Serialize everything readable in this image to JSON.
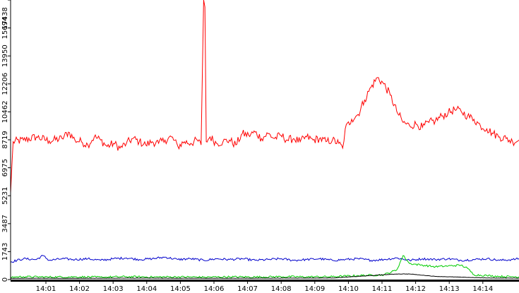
{
  "chart_data": {
    "type": "line",
    "title": "",
    "xlabel": "",
    "ylabel": "",
    "x_tick_labels": [
      "14:01",
      "14:02",
      "14:03",
      "14:04",
      "14:05",
      "14:06",
      "14:07",
      "14:08",
      "14:09",
      "14:10",
      "14:11",
      "14:12",
      "14:13",
      "14:14"
    ],
    "y_tick_labels": [
      "0",
      "1743",
      "3487",
      "5231",
      "6975",
      "8719",
      "10462",
      "12206",
      "13950",
      "15694",
      "17438"
    ],
    "ylim": [
      0,
      17438
    ],
    "xlim_minutes": [
      14.5,
      15.65
    ],
    "grid": false,
    "legend": "none",
    "colors": {
      "red": "#ff0000",
      "blue": "#0000cc",
      "green": "#00cc00",
      "black": "#000000",
      "axis": "#000000"
    },
    "series": [
      {
        "color": "red",
        "points": [
          [
            14.5,
            5400
          ],
          [
            14.52,
            8600
          ],
          [
            14.6,
            8700
          ],
          [
            14.7,
            8900
          ],
          [
            14.8,
            8650
          ],
          [
            14.9,
            8800
          ],
          [
            14.95,
            9200
          ],
          [
            15.0,
            8700
          ],
          [
            15.05,
            8600
          ],
          [
            15.1,
            8400
          ],
          [
            15.15,
            8900
          ],
          [
            15.2,
            8700
          ],
          [
            15.25,
            8300
          ],
          [
            15.3,
            8500
          ],
          [
            15.35,
            8200
          ],
          [
            15.4,
            8500
          ],
          [
            15.45,
            8800
          ],
          [
            15.5,
            8600
          ],
          [
            15.55,
            8400
          ],
          [
            15.6,
            8600
          ],
          [
            15.65,
            8500
          ],
          [
            15.7,
            8700
          ],
          [
            15.75,
            8900
          ],
          [
            15.8,
            8300
          ],
          [
            15.85,
            8600
          ],
          [
            15.9,
            8500
          ],
          [
            15.95,
            8700
          ],
          [
            15.98,
            8400
          ],
          [
            16.0,
            17438
          ],
          [
            16.01,
            17000
          ],
          [
            16.02,
            8600
          ],
          [
            16.05,
            8900
          ],
          [
            16.1,
            8500
          ],
          [
            16.15,
            8600
          ],
          [
            16.2,
            8700
          ],
          [
            16.25,
            8400
          ],
          [
            16.3,
            9100
          ],
          [
            16.35,
            9000
          ],
          [
            16.4,
            9200
          ],
          [
            16.45,
            8800
          ],
          [
            16.5,
            9100
          ],
          [
            16.55,
            8800
          ],
          [
            16.6,
            9000
          ],
          [
            16.65,
            8700
          ],
          [
            16.7,
            8800
          ],
          [
            16.75,
            8600
          ],
          [
            16.8,
            8900
          ],
          [
            16.85,
            8700
          ],
          [
            16.9,
            8800
          ],
          [
            16.95,
            8600
          ],
          [
            17.0,
            8700
          ],
          [
            17.05,
            8500
          ],
          [
            17.08,
            8200
          ],
          [
            17.1,
            9400
          ],
          [
            17.15,
            10000
          ],
          [
            17.2,
            10300
          ],
          [
            17.25,
            11200
          ],
          [
            17.3,
            12000
          ],
          [
            17.35,
            12600
          ],
          [
            17.4,
            12200
          ],
          [
            17.45,
            11500
          ],
          [
            17.5,
            10500
          ],
          [
            17.55,
            9800
          ],
          [
            17.6,
            9600
          ],
          [
            17.65,
            9700
          ],
          [
            17.7,
            9500
          ],
          [
            17.75,
            9800
          ],
          [
            17.8,
            9900
          ],
          [
            17.85,
            10200
          ],
          [
            17.9,
            10400
          ],
          [
            17.95,
            10600
          ],
          [
            18.0,
            10500
          ],
          [
            18.05,
            10200
          ],
          [
            18.1,
            10000
          ],
          [
            18.15,
            9600
          ],
          [
            18.2,
            9400
          ],
          [
            18.25,
            9100
          ],
          [
            18.3,
            8900
          ],
          [
            18.35,
            8800
          ],
          [
            18.4,
            8600
          ],
          [
            18.45,
            8700
          ]
        ]
      },
      {
        "color": "blue",
        "points": [
          [
            14.5,
            1100
          ],
          [
            14.6,
            1300
          ],
          [
            14.7,
            1250
          ],
          [
            14.75,
            1500
          ],
          [
            14.8,
            1200
          ],
          [
            14.9,
            1300
          ],
          [
            15.0,
            1250
          ],
          [
            15.1,
            1300
          ],
          [
            15.2,
            1200
          ],
          [
            15.3,
            1300
          ],
          [
            15.4,
            1350
          ],
          [
            15.5,
            1250
          ],
          [
            15.6,
            1300
          ],
          [
            15.7,
            1400
          ],
          [
            15.8,
            1250
          ],
          [
            15.9,
            1300
          ],
          [
            16.0,
            1200
          ],
          [
            16.1,
            1300
          ],
          [
            16.2,
            1250
          ],
          [
            16.3,
            1300
          ],
          [
            16.4,
            1200
          ],
          [
            16.5,
            1250
          ],
          [
            16.6,
            1300
          ],
          [
            16.7,
            1200
          ],
          [
            16.8,
            1250
          ],
          [
            16.9,
            1300
          ],
          [
            17.0,
            1200
          ],
          [
            17.1,
            1250
          ],
          [
            17.2,
            1300
          ],
          [
            17.3,
            1200
          ],
          [
            17.4,
            1250
          ],
          [
            17.5,
            1350
          ],
          [
            17.6,
            1200
          ],
          [
            17.7,
            1300
          ],
          [
            17.8,
            1250
          ],
          [
            17.9,
            1300
          ],
          [
            18.0,
            1200
          ],
          [
            18.1,
            1250
          ],
          [
            18.2,
            1300
          ],
          [
            18.3,
            1200
          ],
          [
            18.4,
            1250
          ],
          [
            18.45,
            1300
          ]
        ]
      },
      {
        "color": "green",
        "points": [
          [
            14.5,
            150
          ],
          [
            14.6,
            180
          ],
          [
            14.8,
            160
          ],
          [
            15.0,
            170
          ],
          [
            15.2,
            150
          ],
          [
            15.4,
            180
          ],
          [
            15.6,
            160
          ],
          [
            15.8,
            170
          ],
          [
            16.0,
            150
          ],
          [
            16.2,
            170
          ],
          [
            16.4,
            160
          ],
          [
            16.6,
            180
          ],
          [
            16.8,
            170
          ],
          [
            17.0,
            180
          ],
          [
            17.2,
            250
          ],
          [
            17.4,
            300
          ],
          [
            17.5,
            600
          ],
          [
            17.55,
            1500
          ],
          [
            17.6,
            1000
          ],
          [
            17.7,
            900
          ],
          [
            17.8,
            800
          ],
          [
            17.9,
            850
          ],
          [
            18.0,
            900
          ],
          [
            18.05,
            700
          ],
          [
            18.1,
            300
          ],
          [
            18.2,
            250
          ],
          [
            18.3,
            200
          ],
          [
            18.4,
            180
          ],
          [
            18.45,
            170
          ]
        ]
      },
      {
        "color": "black",
        "points": [
          [
            14.5,
            80
          ],
          [
            15.0,
            80
          ],
          [
            15.5,
            90
          ],
          [
            16.0,
            80
          ],
          [
            16.5,
            90
          ],
          [
            17.0,
            100
          ],
          [
            17.5,
            350
          ],
          [
            17.6,
            350
          ],
          [
            17.8,
            200
          ],
          [
            18.0,
            150
          ],
          [
            18.2,
            100
          ],
          [
            18.45,
            90
          ]
        ]
      }
    ]
  }
}
